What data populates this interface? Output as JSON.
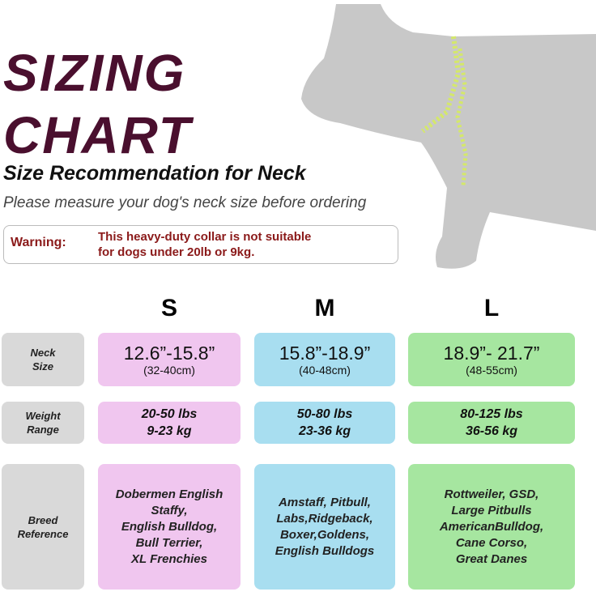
{
  "title": [
    "SIZING",
    "CHART"
  ],
  "subtitle": "Size Recommendation for Neck",
  "instruction": "Please measure your dog's neck size before ordering",
  "warning": {
    "label": "Warning:",
    "lines": [
      "This heavy-duty collar is not suitable",
      "for dogs under 20lb or 9kg."
    ]
  },
  "sizes": [
    "S",
    "M",
    "L"
  ],
  "rows": [
    {
      "label": [
        "Neck",
        "Size"
      ],
      "cells": [
        [
          "12.6”-15.8”",
          "(32-40cm)"
        ],
        [
          "15.8”-18.9”",
          "(40-48cm)"
        ],
        [
          "18.9”- 21.7”",
          "(48-55cm)"
        ]
      ]
    },
    {
      "label": [
        "Weight",
        "Range"
      ],
      "cells": [
        [
          "20-50 lbs",
          "9-23 kg"
        ],
        [
          "50-80 lbs",
          "23-36 kg"
        ],
        [
          "80-125 lbs",
          "36-56 kg"
        ]
      ]
    },
    {
      "label": [
        "Breed",
        "Reference"
      ],
      "cells": [
        [
          "Dobermen English",
          "Staffy,",
          "English Bulldog,",
          "Bull Terrier,",
          "XL Frenchies"
        ],
        [
          "Amstaff, Pitbull,",
          "Labs,Ridgeback,",
          "Boxer,Goldens,",
          "English Bulldogs"
        ],
        [
          "Rottweiler, GSD,",
          "Large Pitbulls",
          "AmericanBulldog,",
          "Cane Corso,",
          "Great Danes"
        ]
      ]
    }
  ]
}
